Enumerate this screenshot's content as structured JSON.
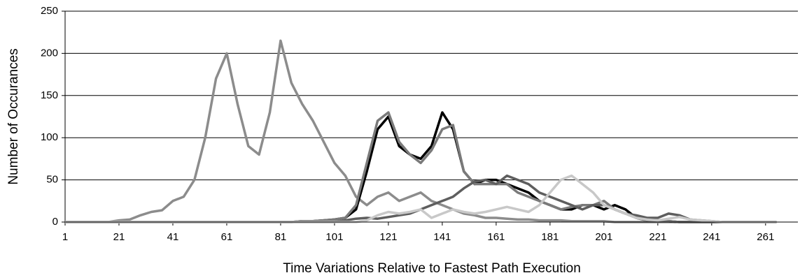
{
  "chart_data": {
    "type": "line",
    "xlabel": "Time Variations Relative to Fastest Path Execution",
    "ylabel": "Number of Occurances",
    "x": [
      1,
      5,
      9,
      13,
      17,
      21,
      25,
      29,
      33,
      37,
      41,
      45,
      49,
      53,
      57,
      61,
      65,
      69,
      73,
      77,
      81,
      85,
      89,
      93,
      97,
      101,
      105,
      109,
      113,
      117,
      121,
      125,
      129,
      133,
      137,
      141,
      145,
      149,
      153,
      157,
      161,
      165,
      169,
      173,
      177,
      181,
      185,
      189,
      193,
      197,
      201,
      205,
      209,
      213,
      217,
      221,
      225,
      229,
      233,
      237,
      241,
      245,
      249,
      253,
      257,
      261,
      265
    ],
    "xlim": [
      1,
      273
    ],
    "xticks": [
      1,
      21,
      41,
      61,
      81,
      101,
      121,
      141,
      161,
      181,
      201,
      221,
      241,
      261
    ],
    "ylim": [
      0,
      250
    ],
    "yticks": [
      0,
      50,
      100,
      150,
      200,
      250
    ],
    "grid": true,
    "series": [
      {
        "color": "#8c8c8c",
        "values": [
          0,
          0,
          0,
          0,
          0,
          2,
          3,
          8,
          12,
          14,
          25,
          30,
          50,
          100,
          170,
          200,
          140,
          90,
          80,
          130,
          215,
          165,
          140,
          120,
          95,
          70,
          55,
          30,
          20,
          30,
          35,
          25,
          30,
          35,
          25,
          20,
          15,
          10,
          8,
          5,
          5,
          4,
          3,
          3,
          2,
          2,
          2,
          1,
          1,
          1,
          1,
          0,
          0,
          0,
          0,
          0,
          0,
          0,
          0,
          0,
          0,
          0,
          0,
          0,
          0,
          0,
          0
        ]
      },
      {
        "color": "#000000",
        "values": [
          0,
          0,
          0,
          0,
          0,
          0,
          0,
          0,
          0,
          0,
          0,
          0,
          0,
          0,
          0,
          0,
          0,
          0,
          0,
          0,
          0,
          0,
          1,
          1,
          2,
          3,
          5,
          15,
          60,
          110,
          125,
          90,
          80,
          75,
          90,
          130,
          110,
          60,
          45,
          50,
          50,
          45,
          40,
          35,
          25,
          20,
          15,
          15,
          20,
          20,
          15,
          20,
          15,
          5,
          2,
          1,
          1,
          0,
          0,
          0,
          0,
          0,
          0,
          0,
          0,
          0,
          0
        ]
      },
      {
        "color": "#7a7a7a",
        "values": [
          0,
          0,
          0,
          0,
          0,
          0,
          0,
          0,
          0,
          0,
          0,
          0,
          0,
          0,
          0,
          0,
          0,
          0,
          0,
          0,
          0,
          0,
          1,
          1,
          2,
          3,
          5,
          20,
          70,
          120,
          130,
          95,
          80,
          70,
          85,
          110,
          115,
          60,
          45,
          45,
          45,
          45,
          35,
          30,
          25,
          20,
          15,
          18,
          20,
          20,
          25,
          15,
          10,
          5,
          2,
          1,
          1,
          0,
          0,
          0,
          0,
          0,
          0,
          0,
          0,
          0,
          0
        ]
      },
      {
        "color": "#5e5e5e",
        "values": [
          0,
          0,
          0,
          0,
          0,
          0,
          0,
          0,
          0,
          0,
          0,
          0,
          0,
          0,
          0,
          0,
          0,
          0,
          0,
          0,
          0,
          0,
          0,
          0,
          0,
          0,
          2,
          4,
          5,
          4,
          6,
          8,
          10,
          15,
          20,
          25,
          30,
          40,
          48,
          50,
          45,
          55,
          50,
          45,
          35,
          30,
          25,
          20,
          15,
          20,
          20,
          15,
          10,
          8,
          5,
          5,
          10,
          8,
          3,
          2,
          1,
          0,
          0,
          0,
          0,
          0,
          0
        ]
      },
      {
        "color": "#c8c8c8",
        "values": [
          0,
          0,
          0,
          0,
          0,
          0,
          0,
          0,
          0,
          0,
          0,
          0,
          0,
          0,
          0,
          0,
          0,
          0,
          0,
          0,
          0,
          0,
          0,
          0,
          0,
          0,
          0,
          0,
          2,
          8,
          12,
          10,
          12,
          15,
          5,
          10,
          15,
          12,
          10,
          12,
          15,
          18,
          15,
          12,
          20,
          35,
          50,
          55,
          45,
          35,
          20,
          15,
          10,
          5,
          3,
          2,
          4,
          6,
          3,
          2,
          1,
          0,
          0,
          0,
          0,
          0,
          0
        ]
      }
    ]
  }
}
